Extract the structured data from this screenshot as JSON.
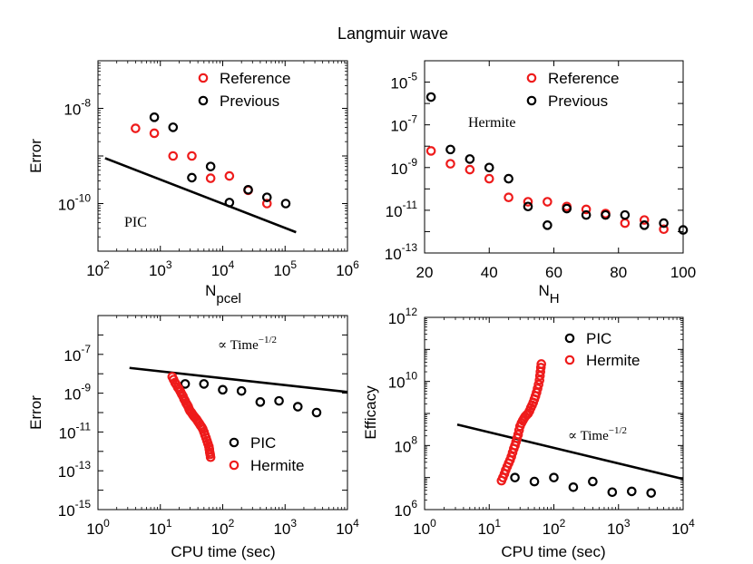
{
  "figure_title": "Langmuir wave",
  "colors": {
    "reference": "#ee1b1b",
    "previous": "#000000",
    "pic": "#000000",
    "hermite": "#ee1b1b",
    "line": "#000000"
  },
  "chart_data": [
    {
      "type": "scatter",
      "panel": "top-left",
      "xscale": "log",
      "yscale": "log",
      "xlim": [
        100,
        1000000
      ],
      "ylim": [
        1e-11,
        1e-07
      ],
      "xlabel": "N",
      "xlabel_sub": "pcel",
      "ylabel": "Error",
      "xticks": [
        {
          "b": "10",
          "e": "2"
        },
        {
          "b": "10",
          "e": "3"
        },
        {
          "b": "10",
          "e": "4"
        },
        {
          "b": "10",
          "e": "5"
        },
        {
          "b": "10",
          "e": "6"
        }
      ],
      "yticks": [
        {
          "b": "10",
          "e": "-8"
        },
        {
          "b": "10",
          "e": "-10"
        }
      ],
      "annotation": "PIC",
      "legend": [
        "Reference",
        "Previous"
      ],
      "series": [
        {
          "name": "Reference",
          "x": [
            400,
            800,
            1600,
            3200,
            6400,
            12800,
            25600,
            51200
          ],
          "y": [
            3.8e-09,
            3e-09,
            1e-09,
            1e-09,
            3.4e-10,
            3.8e-10,
            1.9e-10,
            1e-10
          ]
        },
        {
          "name": "Previous",
          "x": [
            800,
            1600,
            3200,
            6400,
            12800,
            25600,
            51200,
            102400
          ],
          "y": [
            6.5e-09,
            4e-09,
            3.5e-10,
            6e-10,
            1.05e-10,
            1.95e-10,
            1.35e-10,
            1e-10
          ]
        }
      ],
      "trend_line": {
        "x": [
          130,
          150000
        ],
        "y": [
          9e-10,
          2.5e-11
        ]
      }
    },
    {
      "type": "scatter",
      "panel": "top-right",
      "xscale": "linear",
      "yscale": "log",
      "xlim": [
        20,
        100
      ],
      "ylim": [
        1e-13,
        0.0001
      ],
      "xlabel": "N",
      "xlabel_sub": "H",
      "ylabel": "",
      "xticks": [
        {
          "b": "20",
          "e": ""
        },
        {
          "b": "40",
          "e": ""
        },
        {
          "b": "60",
          "e": ""
        },
        {
          "b": "80",
          "e": ""
        },
        {
          "b": "100",
          "e": ""
        }
      ],
      "yticks": [
        {
          "b": "10",
          "e": "-5"
        },
        {
          "b": "10",
          "e": "-7"
        },
        {
          "b": "10",
          "e": "-9"
        },
        {
          "b": "10",
          "e": "-11"
        },
        {
          "b": "10",
          "e": "-13"
        }
      ],
      "annotation": "Hermite",
      "legend": [
        "Reference",
        "Previous"
      ],
      "series": [
        {
          "name": "Reference",
          "x": [
            22,
            28,
            34,
            40,
            46,
            52,
            58,
            64,
            70,
            76,
            82,
            88,
            94
          ],
          "y": [
            6e-09,
            1.5e-09,
            8e-10,
            3e-10,
            4e-11,
            2.5e-11,
            2.5e-11,
            1.5e-11,
            1.1e-11,
            7e-12,
            2.5e-12,
            3.5e-12,
            1.3e-12
          ]
        },
        {
          "name": "Previous",
          "x": [
            22,
            28,
            34,
            40,
            46,
            52,
            58,
            64,
            70,
            76,
            82,
            88,
            94,
            100
          ],
          "y": [
            2e-06,
            7e-09,
            2.5e-09,
            1e-09,
            3e-10,
            1.5e-11,
            2e-12,
            1.2e-11,
            6e-12,
            6e-12,
            6e-12,
            2e-12,
            2.5e-12,
            1.2e-12
          ]
        }
      ]
    },
    {
      "type": "scatter",
      "panel": "bottom-left",
      "xscale": "log",
      "yscale": "log",
      "xlim": [
        1,
        10000
      ],
      "ylim": [
        1e-15,
        1e-05
      ],
      "xlabel": "CPU time (sec)",
      "ylabel": "Error",
      "xticks": [
        {
          "b": "10",
          "e": "0"
        },
        {
          "b": "10",
          "e": "1"
        },
        {
          "b": "10",
          "e": "2"
        },
        {
          "b": "10",
          "e": "3"
        },
        {
          "b": "10",
          "e": "4"
        }
      ],
      "yticks": [
        {
          "b": "10",
          "e": "-7"
        },
        {
          "b": "10",
          "e": "-9"
        },
        {
          "b": "10",
          "e": "-11"
        },
        {
          "b": "10",
          "e": "-13"
        },
        {
          "b": "10",
          "e": "-15"
        }
      ],
      "annotation_prefix": "∝ Time",
      "annotation_exp": "−1/2",
      "legend": [
        "PIC",
        "Hermite"
      ],
      "series": [
        {
          "name": "PIC",
          "x": [
            25,
            50,
            100,
            200,
            400,
            800,
            1600,
            3200
          ],
          "y": [
            3e-09,
            3e-09,
            1.5e-09,
            1.3e-09,
            3.5e-10,
            4e-10,
            2e-10,
            1e-10
          ]
        },
        {
          "name": "Hermite",
          "x": [
            15.5,
            16.3,
            17.2,
            18.0,
            19.0,
            20.0,
            21.0,
            22.0,
            23.0,
            24.0,
            25.0,
            26.0,
            27.0,
            28.0,
            29.0,
            30.0,
            31.5,
            33.0,
            34.5,
            36.0,
            38.0,
            40.0,
            42.0,
            44.0,
            46.0,
            48.0,
            50.0,
            52.0,
            54.0,
            56.0,
            58.0,
            60.0,
            61.0,
            62.0,
            63.0,
            64.0
          ],
          "y": [
            7e-09,
            5e-09,
            3.5e-09,
            2.8e-09,
            2e-09,
            1.6e-09,
            1.2e-09,
            9e-10,
            7e-10,
            5e-10,
            4e-10,
            3e-10,
            2.5e-10,
            2e-10,
            1.5e-10,
            1.2e-10,
            1e-10,
            8e-11,
            6.5e-11,
            5.5e-11,
            4.5e-11,
            3.5e-11,
            2.8e-11,
            2.2e-11,
            1.8e-11,
            1.4e-11,
            1e-11,
            7e-12,
            5e-12,
            3.5e-12,
            2.5e-12,
            1.8e-12,
            1.3e-12,
            9e-13,
            7e-13,
            5e-13
          ]
        }
      ],
      "trend_line": {
        "x": [
          3.2,
          10000
        ],
        "y": [
          2e-08,
          1.15e-09
        ]
      }
    },
    {
      "type": "scatter",
      "panel": "bottom-right",
      "xscale": "log",
      "yscale": "log",
      "xlim": [
        1,
        10000
      ],
      "ylim": [
        1000000.0,
        1000000000000.0
      ],
      "xlabel": "CPU time (sec)",
      "ylabel": "Efficacy",
      "xticks": [
        {
          "b": "10",
          "e": "0"
        },
        {
          "b": "10",
          "e": "1"
        },
        {
          "b": "10",
          "e": "2"
        },
        {
          "b": "10",
          "e": "3"
        },
        {
          "b": "10",
          "e": "4"
        }
      ],
      "yticks": [
        {
          "b": "10",
          "e": "12"
        },
        {
          "b": "10",
          "e": "10"
        },
        {
          "b": "10",
          "e": "8"
        },
        {
          "b": "10",
          "e": "6"
        }
      ],
      "annotation_prefix": "∝ Time",
      "annotation_exp": "−1/2",
      "legend": [
        "PIC",
        "Hermite"
      ],
      "series": [
        {
          "name": "PIC",
          "x": [
            25,
            50,
            100,
            200,
            400,
            800,
            1600,
            3200
          ],
          "y": [
            10000000.0,
            7500000.0,
            10000000.0,
            5000000.0,
            7500000.0,
            3500000.0,
            3700000.0,
            3300000.0
          ]
        },
        {
          "name": "Hermite",
          "x": [
            15.5,
            16.3,
            17.2,
            18.0,
            19.0,
            20.0,
            21.0,
            22.0,
            23.0,
            24.0,
            25.0,
            26.0,
            27.0,
            28.0,
            29.0,
            30.0,
            31.5,
            33.0,
            34.5,
            36.0,
            38.0,
            40.0,
            42.0,
            44.0,
            46.0,
            48.0,
            50.0,
            52.0,
            54.0,
            56.0,
            58.0,
            60.0,
            61.0,
            62.0,
            63.0,
            64.0
          ],
          "y": [
            8000000.0,
            10000000.0,
            13000000.0,
            17000000.0,
            22000000.0,
            28000000.0,
            35000000.0,
            45000000.0,
            60000000.0,
            80000000.0,
            100000000.0,
            130000000.0,
            170000000.0,
            220000000.0,
            300000000.0,
            400000000.0,
            500000000.0,
            600000000.0,
            700000000.0,
            800000000.0,
            900000000.0,
            1000000000.0,
            1200000000.0,
            1500000000.0,
            1800000000.0,
            2200000000.0,
            2800000000.0,
            3500000000.0,
            4500000000.0,
            6000000000.0,
            8000000000.0,
            11000000000.0,
            15000000000.0,
            20000000000.0,
            27000000000.0,
            35000000000.0
          ]
        }
      ],
      "trend_line": {
        "x": [
          3.2,
          10000
        ],
        "y": [
          450000000.0,
          9000000.0
        ]
      }
    }
  ]
}
